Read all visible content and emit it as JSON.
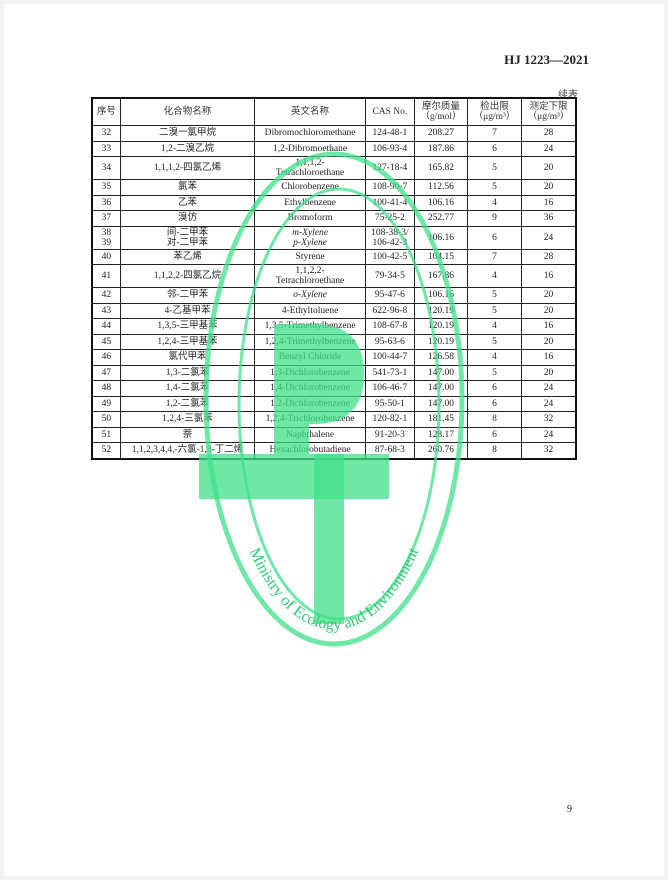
{
  "header": {
    "standard_no": "HJ 1223—2021",
    "continued": "续表"
  },
  "table": {
    "columns": [
      "序号",
      "化合物名称",
      "英文名称",
      "CAS No.",
      "摩尔质量\n（g/mol）",
      "检出限\n（μg/m³）",
      "测定下限\n（μg/m³）"
    ],
    "rows": [
      {
        "no": "32",
        "cn": "二溴一氯甲烷",
        "en": "Dibromochloromethane",
        "cas": "124-48-1",
        "mw": "208.27",
        "dl": "7",
        "ql": "28"
      },
      {
        "no": "33",
        "cn": "1,2-二溴乙烷",
        "en": "1,2-Dibromoethane",
        "cas": "106-93-4",
        "mw": "187.86",
        "dl": "6",
        "ql": "24"
      },
      {
        "no": "34",
        "cn": "1,1,1,2-四氯乙烯",
        "en": "1,1,1,2-\nTetrachloroethane",
        "cas": "127-18-4",
        "mw": "165.82",
        "dl": "5",
        "ql": "20"
      },
      {
        "no": "35",
        "cn": "氯苯",
        "en": "Chlorobenzene",
        "cas": "108-90-7",
        "mw": "112.56",
        "dl": "5",
        "ql": "20"
      },
      {
        "no": "36",
        "cn": "乙苯",
        "en": "Ethylbenzene",
        "cas": "100-41-4",
        "mw": "106.16",
        "dl": "4",
        "ql": "16"
      },
      {
        "no": "37",
        "cn": "溴仿",
        "en": "Bromoform",
        "cas": "75-25-2",
        "mw": "252.77",
        "dl": "9",
        "ql": "36"
      },
      {
        "no": "38\n39",
        "cn": "间-二甲苯\n对-二甲苯",
        "en": "m-Xylene\np-Xylene",
        "cas": "108-38-3/\n106-42-3",
        "mw": "106.16",
        "dl": "6",
        "ql": "24"
      },
      {
        "no": "40",
        "cn": "苯乙烯",
        "en": "Styrene",
        "cas": "100-42-5",
        "mw": "104.15",
        "dl": "7",
        "ql": "28"
      },
      {
        "no": "41",
        "cn": "1,1,2,2-四氯乙烷",
        "en": "1,1,2,2-\nTetrachloroethane",
        "cas": "79-34-5",
        "mw": "167.86",
        "dl": "4",
        "ql": "16"
      },
      {
        "no": "42",
        "cn": "邻-二甲苯",
        "en": "o-Xylene",
        "cas": "95-47-6",
        "mw": "106.16",
        "dl": "5",
        "ql": "20"
      },
      {
        "no": "43",
        "cn": "4-乙基甲苯",
        "en": "4-Ethyltoluene",
        "cas": "622-96-8",
        "mw": "120.19",
        "dl": "5",
        "ql": "20"
      },
      {
        "no": "44",
        "cn": "1,3,5-三甲基苯",
        "en": "1,3,5-Trimethylbenzene",
        "cas": "108-67-8",
        "mw": "120.19",
        "dl": "4",
        "ql": "16"
      },
      {
        "no": "45",
        "cn": "1,2,4-三甲基苯",
        "en": "1,2,4-Trimethylbenzene",
        "cas": "95-63-6",
        "mw": "120.19",
        "dl": "5",
        "ql": "20"
      },
      {
        "no": "46",
        "cn": "氯代甲苯",
        "en": "Benzyl Chloride",
        "cas": "100-44-7",
        "mw": "126.58",
        "dl": "4",
        "ql": "16"
      },
      {
        "no": "47",
        "cn": "1,3-二氯苯",
        "en": "1,3-Dichlorobenzene",
        "cas": "541-73-1",
        "mw": "147.00",
        "dl": "5",
        "ql": "20"
      },
      {
        "no": "48",
        "cn": "1,4-二氯苯",
        "en": "1,4-Dichlorobenzene",
        "cas": "106-46-7",
        "mw": "147.00",
        "dl": "6",
        "ql": "24"
      },
      {
        "no": "49",
        "cn": "1,2-二氯苯",
        "en": "1,2-Dichlorobenzene",
        "cas": "95-50-1",
        "mw": "147.00",
        "dl": "6",
        "ql": "24"
      },
      {
        "no": "50",
        "cn": "1,2,4-三氯苯",
        "en": "1,2,4-Trichlorobenzene",
        "cas": "120-82-1",
        "mw": "181.45",
        "dl": "8",
        "ql": "32"
      },
      {
        "no": "51",
        "cn": "萘",
        "en": "Naphthalene",
        "cas": "91-20-3",
        "mw": "128.17",
        "dl": "6",
        "ql": "24"
      },
      {
        "no": "52",
        "cn": "1,1,2,3,4,4,-六氯-1,3-丁二烯",
        "en": "Hexachlorobutadiene",
        "cas": "87-68-3",
        "mw": "260.76",
        "dl": "8",
        "ql": "32"
      }
    ]
  },
  "watermark": {
    "text": "Ministry of Ecology and Environment",
    "color": "#3fe08a"
  },
  "page_number": "9"
}
